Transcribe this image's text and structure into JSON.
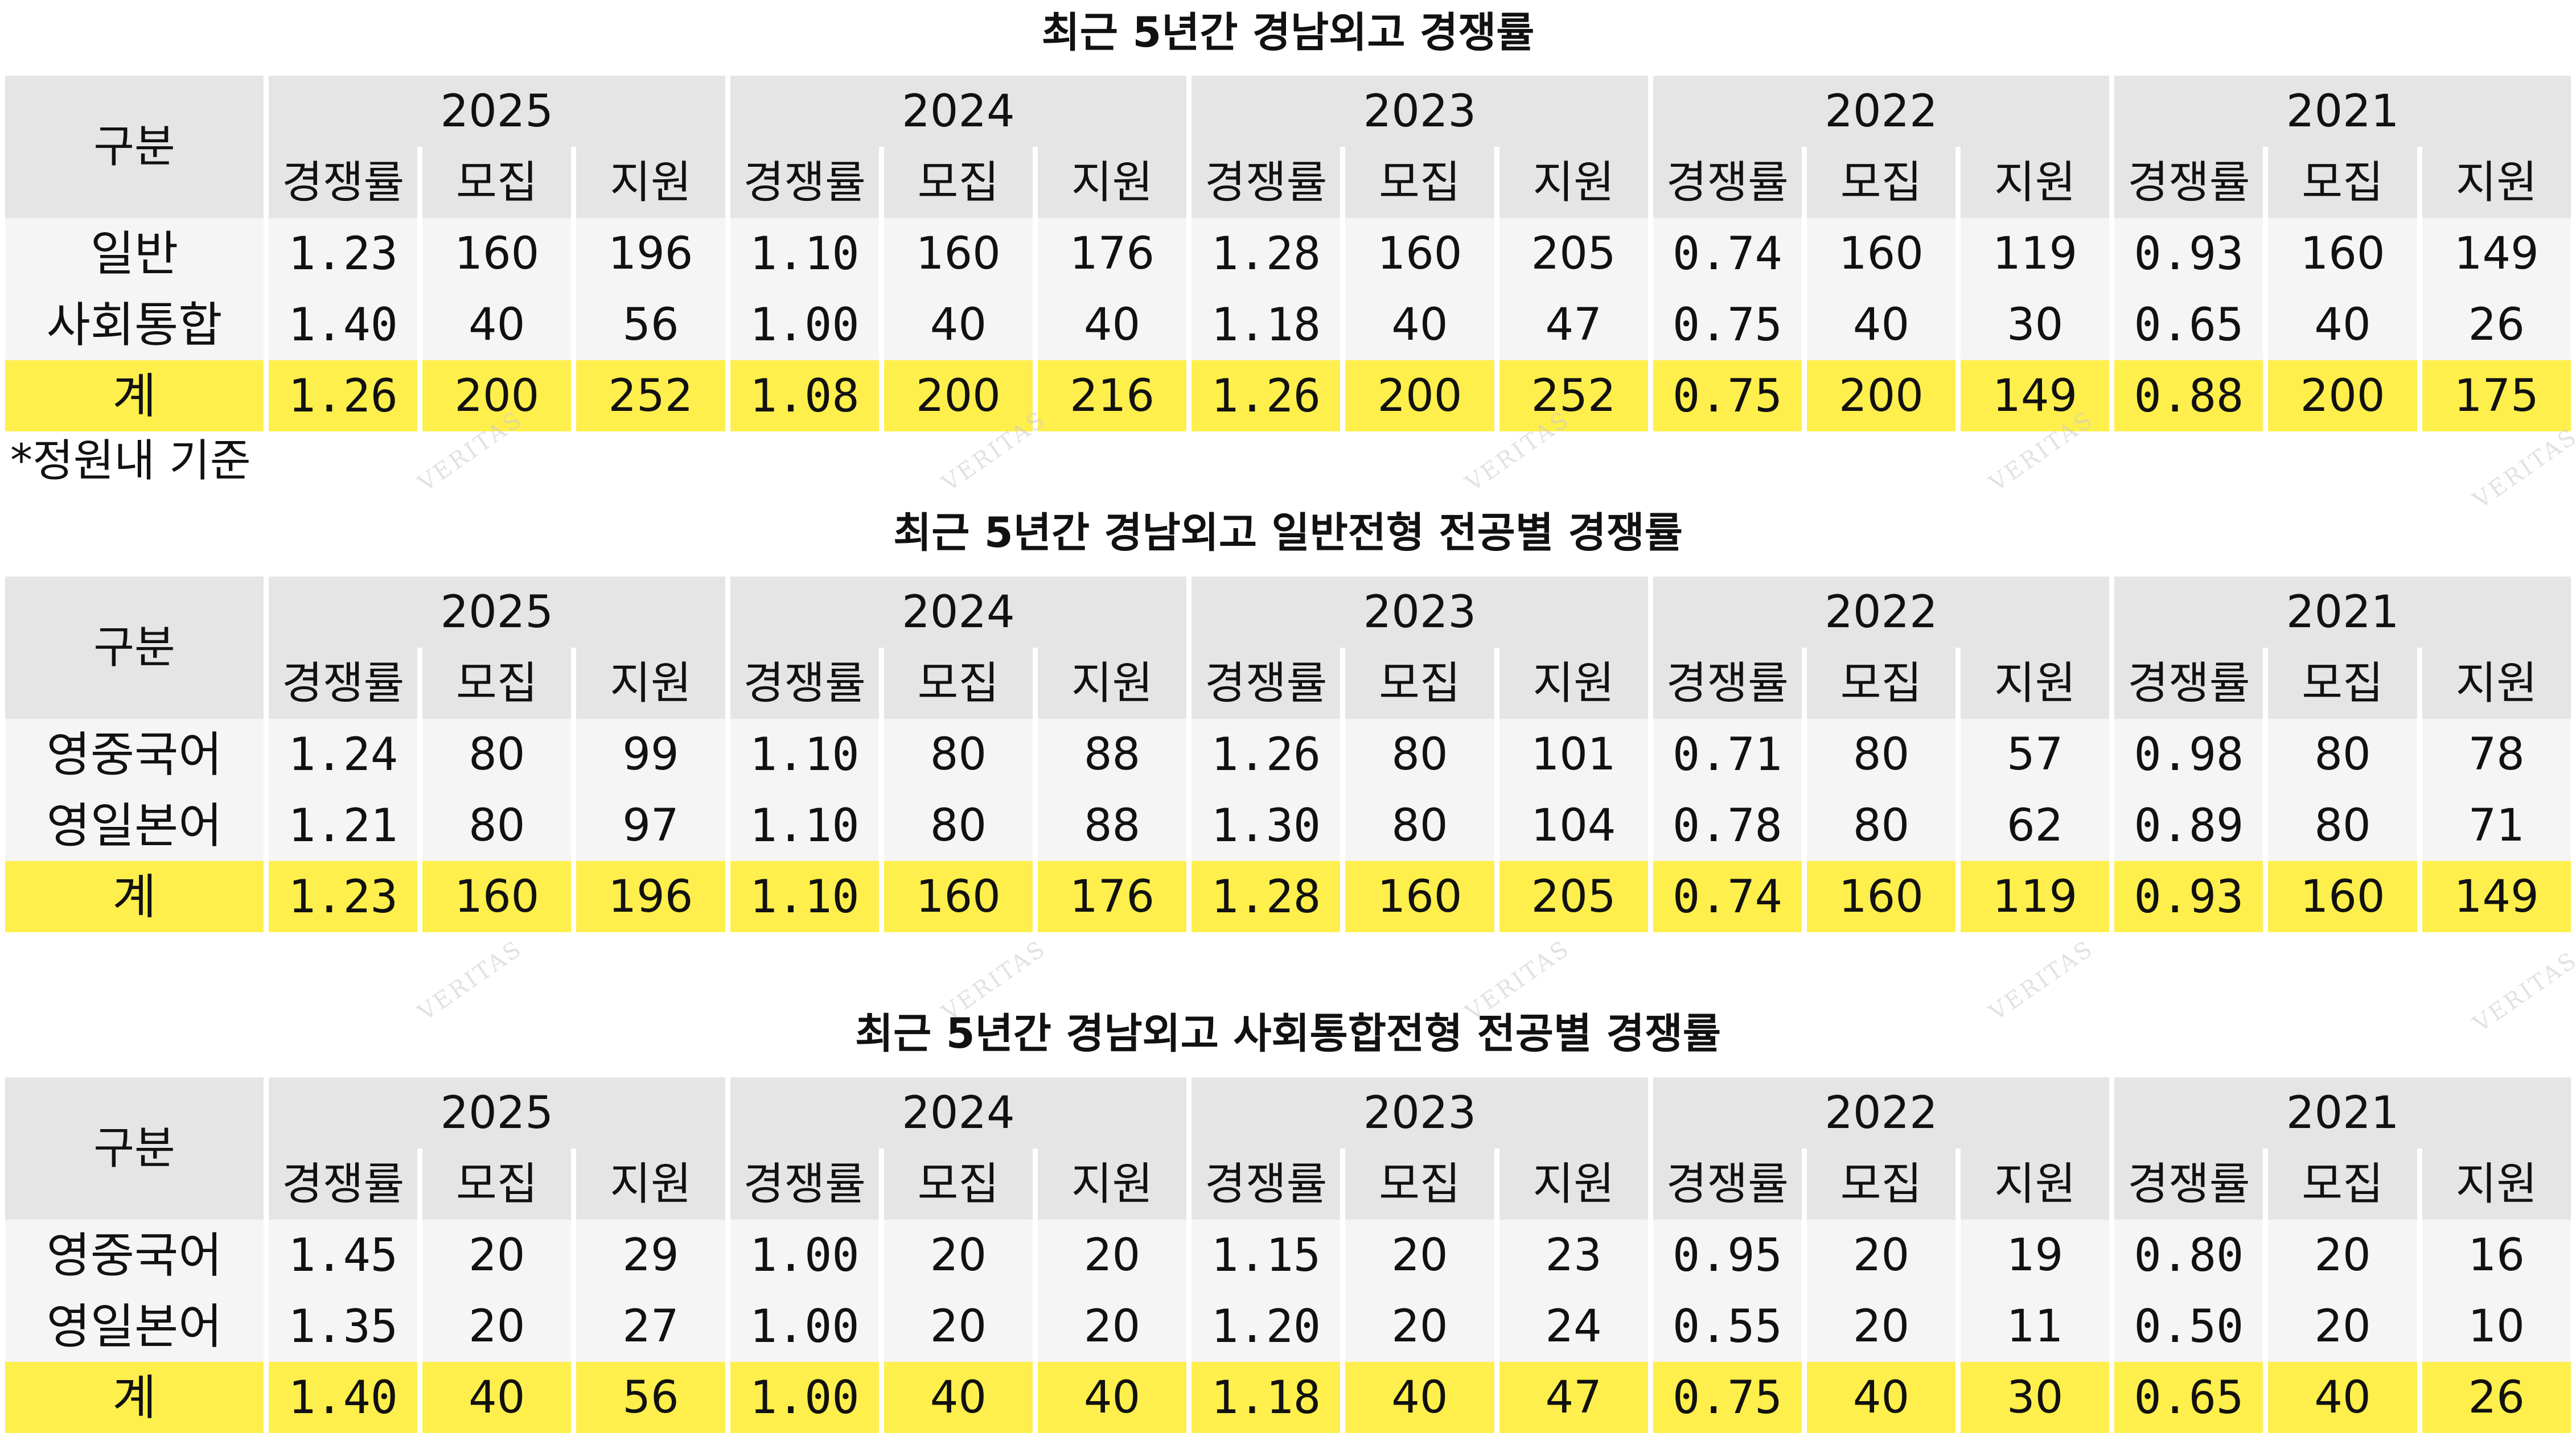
{
  "sections": [
    {
      "title": "최근 5년간 경남외고 경쟁률",
      "header": {
        "gubun": "구분",
        "years": [
          "2025",
          "2024",
          "2023",
          "2022",
          "2021"
        ],
        "subcols": [
          "경쟁률",
          "모집",
          "지원"
        ]
      },
      "rows": [
        {
          "label": "일반",
          "values": [
            "1.23",
            "160",
            "196",
            "1.10",
            "160",
            "176",
            "1.28",
            "160",
            "205",
            "0.74",
            "160",
            "119",
            "0.93",
            "160",
            "149"
          ]
        },
        {
          "label": "사회통합",
          "values": [
            "1.40",
            "40",
            "56",
            "1.00",
            "40",
            "40",
            "1.18",
            "40",
            "47",
            "0.75",
            "40",
            "30",
            "0.65",
            "40",
            "26"
          ]
        }
      ],
      "total": {
        "label": "계",
        "values": [
          "1.26",
          "200",
          "252",
          "1.08",
          "200",
          "216",
          "1.26",
          "200",
          "252",
          "0.75",
          "200",
          "149",
          "0.88",
          "200",
          "175"
        ]
      },
      "footnote": "*정원내 기준"
    },
    {
      "title": "최근 5년간 경남외고 일반전형 전공별 경쟁률",
      "header": {
        "gubun": "구분",
        "years": [
          "2025",
          "2024",
          "2023",
          "2022",
          "2021"
        ],
        "subcols": [
          "경쟁률",
          "모집",
          "지원"
        ]
      },
      "rows": [
        {
          "label": "영중국어",
          "values": [
            "1.24",
            "80",
            "99",
            "1.10",
            "80",
            "88",
            "1.26",
            "80",
            "101",
            "0.71",
            "80",
            "57",
            "0.98",
            "80",
            "78"
          ]
        },
        {
          "label": "영일본어",
          "values": [
            "1.21",
            "80",
            "97",
            "1.10",
            "80",
            "88",
            "1.30",
            "80",
            "104",
            "0.78",
            "80",
            "62",
            "0.89",
            "80",
            "71"
          ]
        }
      ],
      "total": {
        "label": "계",
        "values": [
          "1.23",
          "160",
          "196",
          "1.10",
          "160",
          "176",
          "1.28",
          "160",
          "205",
          "0.74",
          "160",
          "119",
          "0.93",
          "160",
          "149"
        ]
      }
    },
    {
      "title": "최근 5년간 경남외고 사회통합전형 전공별 경쟁률",
      "header": {
        "gubun": "구분",
        "years": [
          "2025",
          "2024",
          "2023",
          "2022",
          "2021"
        ],
        "subcols": [
          "경쟁률",
          "모집",
          "지원"
        ]
      },
      "rows": [
        {
          "label": "영중국어",
          "values": [
            "1.45",
            "20",
            "29",
            "1.00",
            "20",
            "20",
            "1.15",
            "20",
            "23",
            "0.95",
            "20",
            "19",
            "0.80",
            "20",
            "16"
          ]
        },
        {
          "label": "영일본어",
          "values": [
            "1.35",
            "20",
            "27",
            "1.00",
            "20",
            "20",
            "1.20",
            "20",
            "24",
            "0.55",
            "20",
            "11",
            "0.50",
            "20",
            "10"
          ]
        }
      ],
      "total": {
        "label": "계",
        "values": [
          "1.40",
          "40",
          "56",
          "1.00",
          "40",
          "40",
          "1.18",
          "40",
          "47",
          "0.75",
          "40",
          "30",
          "0.65",
          "40",
          "26"
        ]
      }
    }
  ],
  "colors": {
    "header_bg": "#e5e5e5",
    "row_bg": "#f5f5f5",
    "total_bg": "#ffef4c",
    "watermark": "#cccccc"
  },
  "watermark": "VERITAS"
}
